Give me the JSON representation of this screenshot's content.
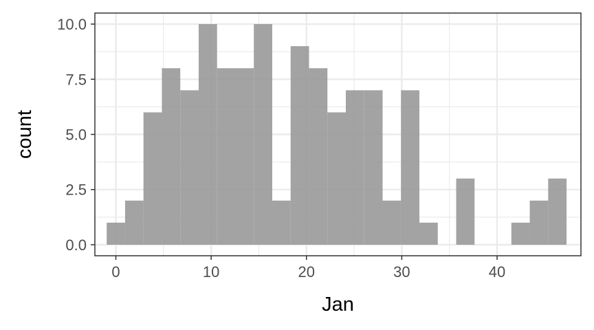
{
  "chart_data": {
    "type": "bar",
    "subtype": "histogram",
    "xlabel": "Jan",
    "ylabel": "count",
    "xlim": [
      -2.2,
      48.8
    ],
    "ylim": [
      -0.5,
      10.5
    ],
    "x_ticks": [
      0,
      10,
      20,
      30,
      40
    ],
    "y_ticks": [
      0.0,
      2.5,
      5.0,
      7.5,
      10.0
    ],
    "y_tick_labels": [
      "0.0",
      "2.5",
      "5.0",
      "7.5",
      "10.0"
    ],
    "bin_width": 1.93,
    "bins": [
      {
        "x0": -0.96,
        "count": 1
      },
      {
        "x0": 0.97,
        "count": 2
      },
      {
        "x0": 2.9,
        "count": 6
      },
      {
        "x0": 4.83,
        "count": 8
      },
      {
        "x0": 6.76,
        "count": 7
      },
      {
        "x0": 8.69,
        "count": 10
      },
      {
        "x0": 10.62,
        "count": 8
      },
      {
        "x0": 12.55,
        "count": 8
      },
      {
        "x0": 14.48,
        "count": 10
      },
      {
        "x0": 16.41,
        "count": 2
      },
      {
        "x0": 18.34,
        "count": 9
      },
      {
        "x0": 20.27,
        "count": 8
      },
      {
        "x0": 22.2,
        "count": 6
      },
      {
        "x0": 24.13,
        "count": 7
      },
      {
        "x0": 26.06,
        "count": 7
      },
      {
        "x0": 27.99,
        "count": 2
      },
      {
        "x0": 29.92,
        "count": 7
      },
      {
        "x0": 31.85,
        "count": 1
      },
      {
        "x0": 33.78,
        "count": 0
      },
      {
        "x0": 35.71,
        "count": 3
      },
      {
        "x0": 37.64,
        "count": 0
      },
      {
        "x0": 39.57,
        "count": 0
      },
      {
        "x0": 41.5,
        "count": 1
      },
      {
        "x0": 43.43,
        "count": 2
      },
      {
        "x0": 45.36,
        "count": 3
      }
    ],
    "grid": true,
    "theme": "bw",
    "bar_color": "#999999",
    "bar_opacity": 0.9,
    "grid_color": "#ebebeb",
    "panel_border_color": "#333333"
  }
}
